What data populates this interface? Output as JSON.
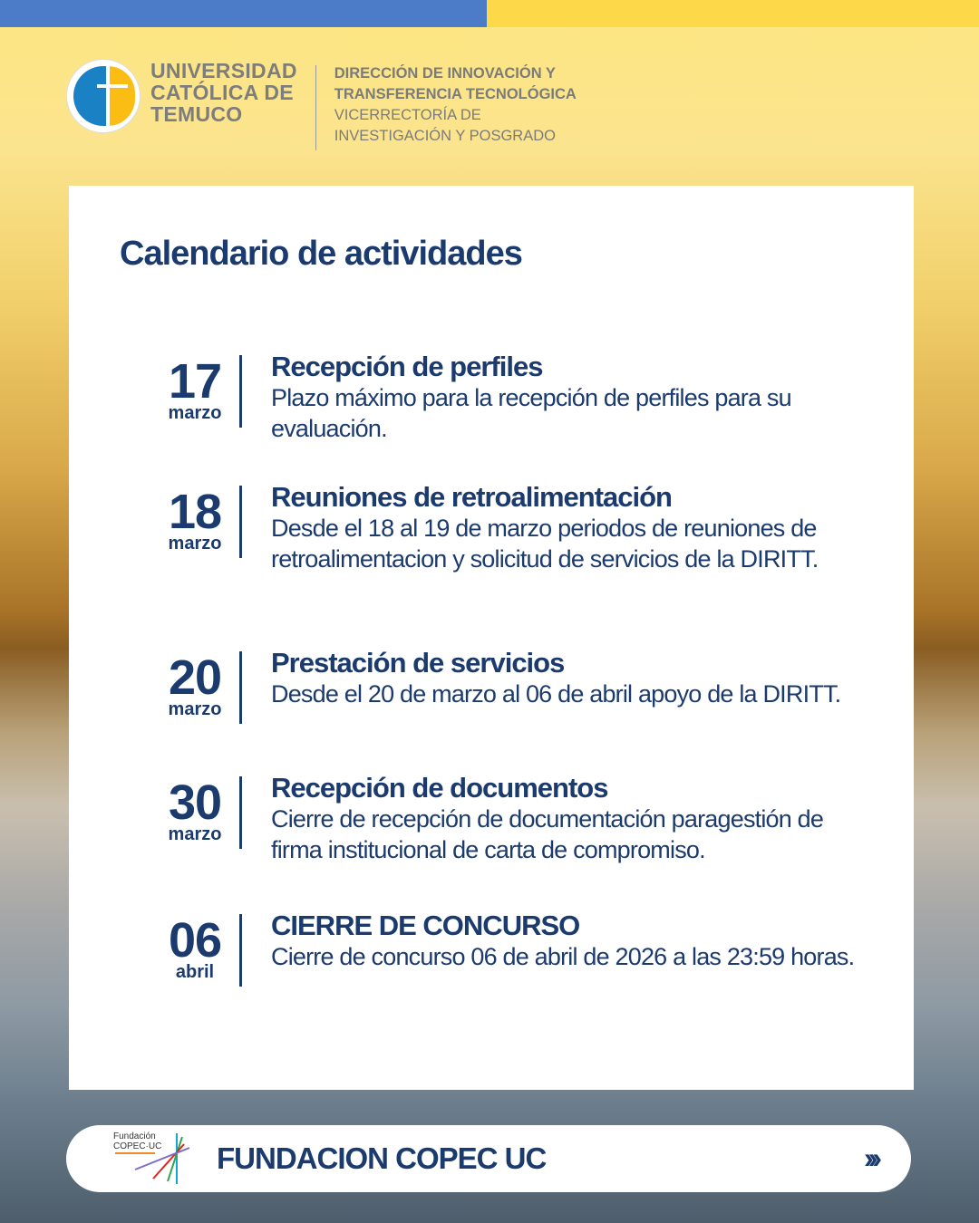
{
  "colors": {
    "navy": "#1b3a6e",
    "top_blue": "#4c7cc7",
    "top_yellow": "#fdd94a"
  },
  "header": {
    "university": [
      "UNIVERSIDAD",
      "CATÓLICA DE",
      "TEMUCO"
    ],
    "direction": [
      "DIRECCIÓN DE INNOVACIÓN Y",
      "TRANSFERENCIA TECNOLÓGICA"
    ],
    "vicerrectoria": [
      "VICERRECTORÍA DE",
      "INVESTIGACIÓN Y POSGRADO"
    ]
  },
  "title": "Calendario de actividades",
  "items": [
    {
      "day": "17",
      "month": "marzo",
      "heading": "Recepción de perfiles",
      "text": "Plazo máximo para la recepción de perfiles para su evaluación."
    },
    {
      "day": "18",
      "month": "marzo",
      "heading": "Reuniones de retroalimentación",
      "text": "Desde el 18 al 19 de marzo periodos de reuniones de retroalimentacion y solicitud de servicios de la DIRITT."
    },
    {
      "day": "20",
      "month": "marzo",
      "heading": "Prestación de servicios",
      "text": "Desde el 20 de marzo al 06 de abril apoyo de la DIRITT."
    },
    {
      "day": "30",
      "month": "marzo",
      "heading": "Recepción de documentos",
      "text": "Cierre de recepción de documentación paragestión de firma institucional de carta de compromiso."
    },
    {
      "day": "06",
      "month": "abril",
      "heading": "CIERRE DE CONCURSO",
      "text": "Cierre de concurso 06 de abril de 2026 a las 23:59 horas."
    }
  ],
  "footer": {
    "logo_text": [
      "Fundación",
      "COPEC·UC"
    ],
    "title": "FUNDACION COPEC UC",
    "arrows": "›››"
  }
}
